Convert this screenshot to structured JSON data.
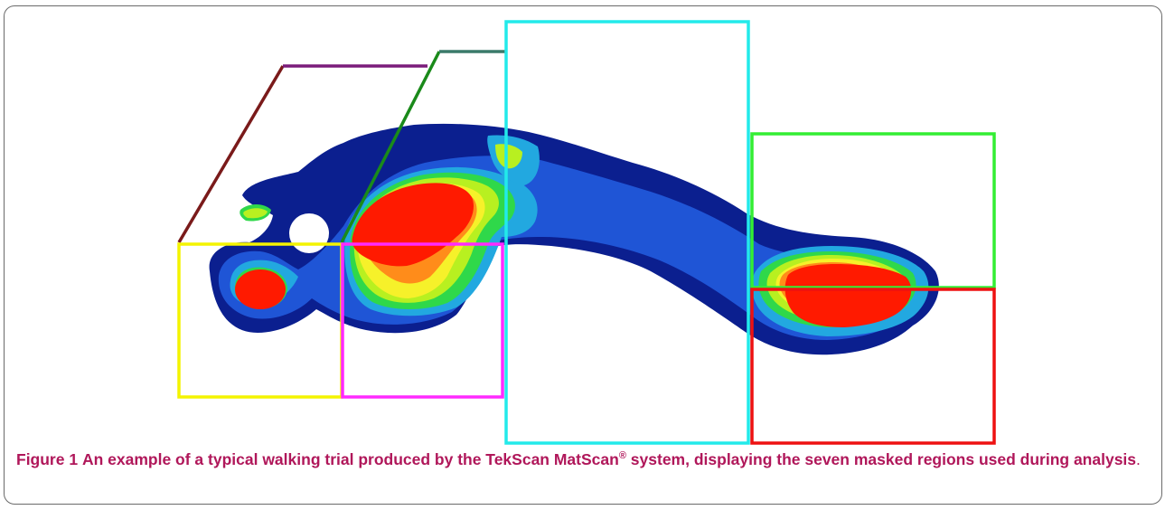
{
  "figure": {
    "label": "Figure 1",
    "caption_before": "An example of a typical walking trial produced by the TekScan MatScan",
    "caption_registered": "®",
    "caption_after": " system, displaying the seven masked regions used during analysis",
    "caption_end": "."
  },
  "colors": {
    "pressure_low": "#0b1f8f",
    "pressure_mid_low": "#1f55d6",
    "pressure_cyan": "#22a8e0",
    "pressure_green": "#2fd84a",
    "pressure_lime": "#b8f020",
    "pressure_yellow": "#f6f12a",
    "pressure_orange": "#ff8c1a",
    "pressure_high": "#ff1a00",
    "mask_yellow": "#f4f400",
    "mask_magenta": "#ff2aff",
    "mask_cyan": "#22eaea",
    "mask_green": "#33ee33",
    "mask_red": "#ee1111",
    "mask_purple": "#7a1c7a",
    "mask_maroon": "#7a1a1a",
    "mask_darkgreen": "#1a8a1a",
    "mask_teal": "#3a7a6a",
    "caption": "#b0175a"
  },
  "masked_regions_count": 7
}
